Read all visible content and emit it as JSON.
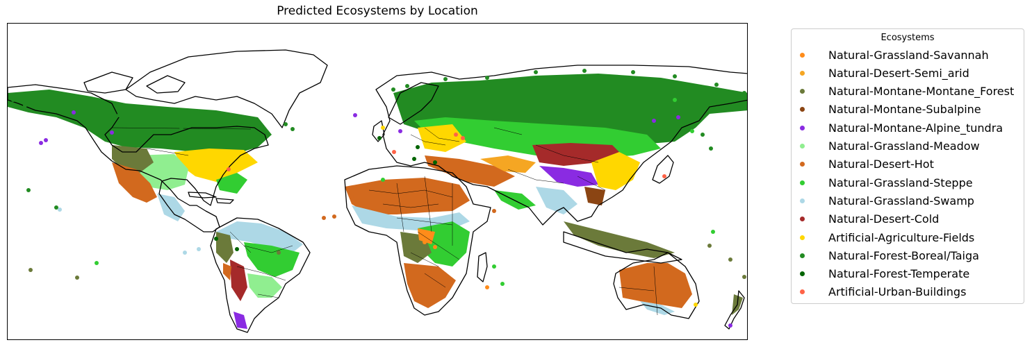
{
  "title": "Predicted Ecosystems by Location",
  "legend": {
    "title": "Ecosystems",
    "items": [
      {
        "label": "Natural-Grassland-Savannah",
        "color": "#ff8c1a"
      },
      {
        "label": "Natural-Desert-Semi_arid",
        "color": "#f5a623"
      },
      {
        "label": "Natural-Montane-Montane_Forest",
        "color": "#6b7a3a"
      },
      {
        "label": "Natural-Montane-Subalpine",
        "color": "#8b4513"
      },
      {
        "label": "Natural-Montane-Alpine_tundra",
        "color": "#8a2be2"
      },
      {
        "label": "Natural-Grassland-Meadow",
        "color": "#90ee90"
      },
      {
        "label": "Natural-Desert-Hot",
        "color": "#d2691e"
      },
      {
        "label": "Natural-Grassland-Steppe",
        "color": "#32cd32"
      },
      {
        "label": "Natural-Grassland-Swamp",
        "color": "#add8e6"
      },
      {
        "label": "Natural-Desert-Cold",
        "color": "#a52a2a"
      },
      {
        "label": "Artificial-Agriculture-Fields",
        "color": "#ffd700"
      },
      {
        "label": "Natural-Forest-Boreal/Taiga",
        "color": "#228b22"
      },
      {
        "label": "Natural-Forest-Temperate",
        "color": "#006400"
      },
      {
        "label": "Artificial-Urban-Buildings",
        "color": "#ff6347"
      }
    ]
  }
}
